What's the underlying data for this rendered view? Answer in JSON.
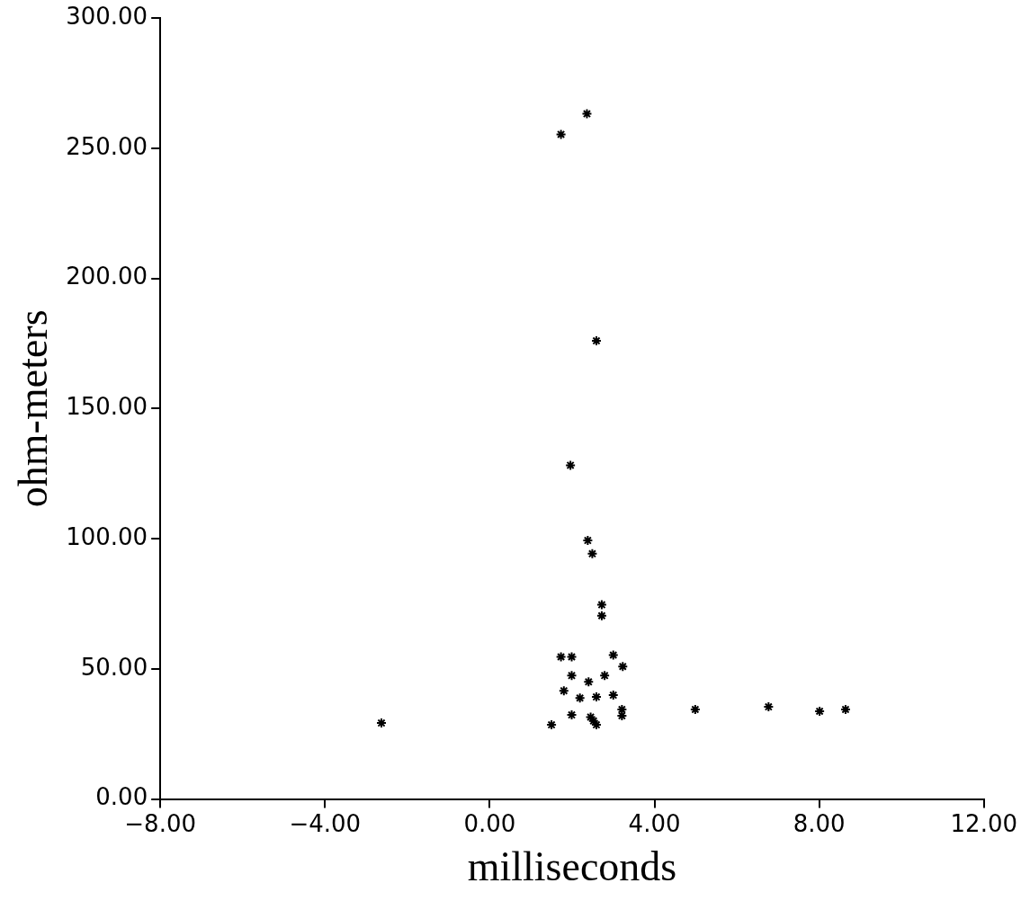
{
  "chart_data": {
    "type": "scatter",
    "xlabel": "milliseconds",
    "ylabel": "ohm-meters",
    "x": [
      -2.63,
      1.73,
      2.36,
      2.59,
      1.96,
      2.38,
      2.49,
      2.72,
      2.72,
      1.73,
      1.99,
      3.0,
      3.23,
      1.99,
      2.79,
      2.4,
      1.8,
      2.19,
      2.59,
      3.0,
      1.99,
      1.5,
      2.45,
      2.52,
      2.59,
      3.21,
      3.21,
      4.99,
      6.77,
      8.01,
      8.64
    ],
    "values": [
      29.2,
      255.3,
      263.2,
      176,
      128.2,
      99.3,
      94.2,
      74.6,
      70.4,
      54.6,
      54.6,
      55.3,
      50.9,
      47.4,
      47.4,
      45.0,
      41.6,
      38.8,
      39.2,
      39.9,
      32.3,
      28.5,
      31.5,
      30,
      28.5,
      34.4,
      32.0,
      34.4,
      35.4,
      33.7,
      34.4
    ],
    "color": "#000000",
    "marker": "cross",
    "grid": false,
    "legend": false,
    "xlim": [
      -8,
      12
    ],
    "ylim": [
      0,
      300
    ],
    "xticks": [
      {
        "value": -8,
        "label": "−8.00"
      },
      {
        "value": -4,
        "label": "−4.00"
      },
      {
        "value": 0,
        "label": "0.00"
      },
      {
        "value": 4,
        "label": "4.00"
      },
      {
        "value": 8,
        "label": "8.00"
      },
      {
        "value": 12,
        "label": "12.00"
      }
    ],
    "yticks": [
      {
        "value": 0,
        "label": "0.00"
      },
      {
        "value": 50,
        "label": "50.00"
      },
      {
        "value": 100,
        "label": "100.00"
      },
      {
        "value": 150,
        "label": "150.00"
      },
      {
        "value": 200,
        "label": "200.00"
      },
      {
        "value": 250,
        "label": "250.00"
      },
      {
        "value": 300,
        "label": "300.00"
      }
    ]
  }
}
